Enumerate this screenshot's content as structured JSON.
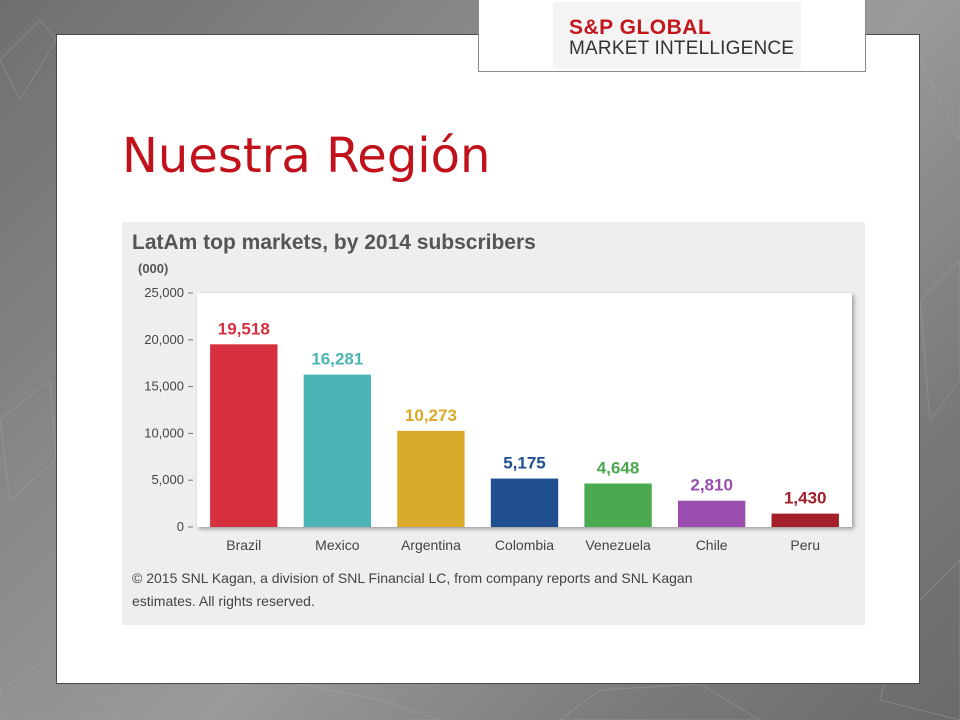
{
  "slide": {
    "title": "Nuestra Región"
  },
  "logo": {
    "line1": "S&P GLOBAL",
    "line2": "MARKET INTELLIGENCE"
  },
  "chart_data": {
    "type": "bar",
    "title": "LatAm top markets, by 2014 subscribers",
    "unit_label": "(000)",
    "categories": [
      "Brazil",
      "Mexico",
      "Argentina",
      "Colombia",
      "Venezuela",
      "Chile",
      "Peru"
    ],
    "values": [
      19518,
      16281,
      10273,
      5175,
      4648,
      2810,
      1430
    ],
    "value_labels": [
      "19,518",
      "16,281",
      "10,273",
      "5,175",
      "4,648",
      "2,810",
      "1,430"
    ],
    "colors": [
      "#d6303e",
      "#4bb5b5",
      "#d9aa2a",
      "#1f4f8f",
      "#4aa84e",
      "#9b4db0",
      "#a31f2a"
    ],
    "ylim": [
      0,
      25000
    ],
    "yticks": [
      0,
      5000,
      10000,
      15000,
      20000,
      25000
    ],
    "ytick_labels": [
      "0",
      "5,000",
      "10,000",
      "15,000",
      "20,000",
      "25,000"
    ],
    "grid": false,
    "legend": "none",
    "footnote": [
      "© 2015 SNL Kagan, a division of SNL Financial LC, from company reports and SNL Kagan",
      "estimates. All rights reserved."
    ]
  }
}
